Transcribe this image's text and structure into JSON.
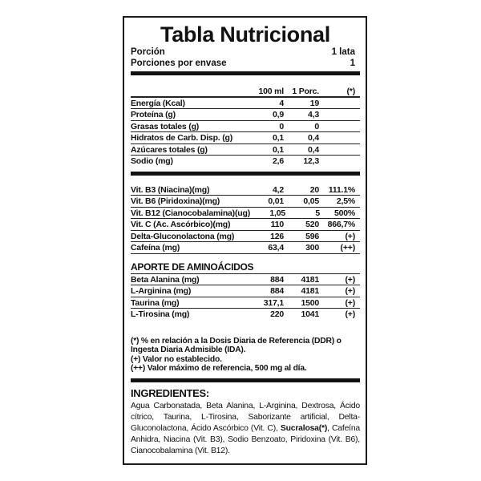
{
  "title": "Tabla Nutricional",
  "serving": {
    "label": "Porción",
    "value": "1 lata"
  },
  "servings_per_container": {
    "label": "Porciones por envase",
    "value": "1"
  },
  "columns": [
    "",
    "100 ml",
    "1 Porc.",
    "(*)"
  ],
  "nutrients": [
    [
      "Energía (Kcal)",
      "4",
      "19",
      ""
    ],
    [
      "Proteína (g)",
      "0,9",
      "4,3",
      ""
    ],
    [
      "Grasas totales (g)",
      "0",
      "0",
      ""
    ],
    [
      "Hidratos de Carb. Disp. (g)",
      "0,1",
      "0,4",
      ""
    ],
    [
      "Azúcares totales (g)",
      "0,1",
      "0,4",
      ""
    ],
    [
      "Sodio (mg)",
      "2,6",
      "12,3",
      ""
    ]
  ],
  "vitamins": [
    [
      "Vit. B3 (Niacina)(mg)",
      "4,2",
      "20",
      "111.1%"
    ],
    [
      "Vit. B6 (Piridoxina)(mg)",
      "0,01",
      "0,05",
      "2,5%"
    ],
    [
      "Vit. B12 (Cianocobalamina)(ug)",
      "1,05",
      "5",
      "500%"
    ],
    [
      "Vit. C (Ac. Ascórbico)(mg)",
      "110",
      "520",
      "866,7%"
    ],
    [
      "Delta-Gluconolactona (mg)",
      "126",
      "596",
      "(+)"
    ],
    [
      "Cafeína (mg)",
      "63,4",
      "300",
      "(++)"
    ]
  ],
  "amino_title": "APORTE DE AMINOÁCIDOS",
  "amino": [
    [
      "Beta Alanina (mg)",
      "884",
      "4181",
      "(+)"
    ],
    [
      "L-Arginina (mg)",
      "884",
      "4181",
      "(+)"
    ],
    [
      "Taurina (mg)",
      "317,1",
      "1500",
      "(+)"
    ],
    [
      "L-Tirosina (mg)",
      "220",
      "1041",
      "(+)"
    ]
  ],
  "notes": [
    "(*) % en relación a la Dosis Diaria de Referencia (DDR) o Ingesta Diaria Admisible (IDA).",
    "(+) Valor no establecido.",
    "(++) Valor máximo de referencia, 500 mg al día."
  ],
  "ingredients_title": "INGREDIENTES:",
  "ingredients_pre": "Agua Carbonatada, Beta Alanina, L-Arginina, Dextrosa, Ácido cítrico, Taurina, L-Tirosina, Saborizante artificial, Delta-Gluconolactona, Ácido Ascórbico (Vit. C), ",
  "ingredients_bold": "Sucralosa(*)",
  "ingredients_post": ", Cafeína Anhidra, Niacina (Vit. B3), Sodio Benzoato, Piridoxina (Vit. B6), Cianocobalamina (Vit. B12)."
}
